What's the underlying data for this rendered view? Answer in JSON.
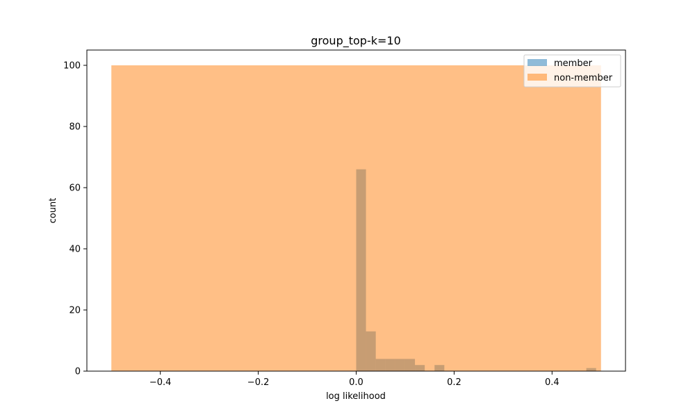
{
  "chart_data": {
    "type": "histogram",
    "title": "group_top-k=10",
    "xlabel": "log likelihood",
    "ylabel": "count",
    "xlim": [
      -0.55,
      0.55
    ],
    "ylim": [
      0,
      105
    ],
    "x_ticks": [
      -0.4,
      -0.2,
      0.0,
      0.2,
      0.4
    ],
    "x_tick_labels": [
      "−0.4",
      "−0.2",
      "0.0",
      "0.2",
      "0.4"
    ],
    "y_ticks": [
      0,
      20,
      40,
      60,
      80,
      100
    ],
    "y_tick_labels": [
      "0",
      "20",
      "40",
      "60",
      "80",
      "100"
    ],
    "grid": false,
    "legend_position": "top-right",
    "series": [
      {
        "name": "member",
        "color": "#1f77b4",
        "alpha": 0.5,
        "bins": [
          {
            "x0": 0.0,
            "x1": 0.02,
            "count": 66
          },
          {
            "x0": 0.02,
            "x1": 0.04,
            "count": 13
          },
          {
            "x0": 0.04,
            "x1": 0.06,
            "count": 4
          },
          {
            "x0": 0.06,
            "x1": 0.08,
            "count": 4
          },
          {
            "x0": 0.08,
            "x1": 0.1,
            "count": 4
          },
          {
            "x0": 0.1,
            "x1": 0.12,
            "count": 4
          },
          {
            "x0": 0.12,
            "x1": 0.14,
            "count": 2
          },
          {
            "x0": 0.16,
            "x1": 0.18,
            "count": 2
          },
          {
            "x0": 0.47,
            "x1": 0.49,
            "count": 1
          }
        ]
      },
      {
        "name": "non-member",
        "color": "#ff7f0e",
        "alpha": 0.5,
        "bins": [
          {
            "x0": -0.5,
            "x1": 0.5,
            "count": 100
          }
        ]
      }
    ]
  }
}
